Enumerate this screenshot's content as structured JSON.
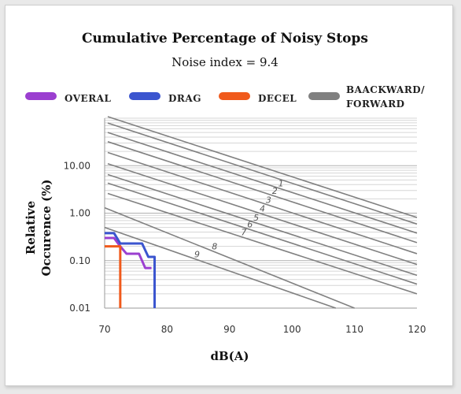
{
  "chart_data": {
    "type": "line",
    "title": "Cumulative Percentage of Noisy Stops",
    "subtitle": "Noise index = 9.4",
    "xlabel": "dB(A)",
    "ylabel": "Relative Occurence (%)",
    "xlim": [
      70,
      120
    ],
    "ylim": [
      0.01,
      100
    ],
    "yscale": "log",
    "x_ticks": [
      "70",
      "80",
      "90",
      "100",
      "110",
      "120"
    ],
    "x_tick_values": [
      70,
      80,
      90,
      100,
      110,
      120
    ],
    "y_ticks": [
      "0.01",
      "0.10",
      "1.00",
      "10.00"
    ],
    "y_tick_values": [
      0.01,
      0.1,
      1,
      10
    ],
    "grid": true,
    "legend_position": "top",
    "legend": [
      {
        "label": "OVERAL",
        "color": "#9b3fd0"
      },
      {
        "label": "DRAG",
        "color": "#3b55cf"
      },
      {
        "label": "DECEL",
        "color": "#f05a1c"
      },
      {
        "label": "BAACKWARD/",
        "label2": "FORWARD",
        "color": "#808080"
      }
    ],
    "series": [
      {
        "name": "OVERAL",
        "color": "#9b3fd0",
        "x": [
          70,
          71.5,
          72.5,
          73.5,
          74.5,
          75.5,
          76.5,
          77.5
        ],
        "y": [
          0.3,
          0.3,
          0.2,
          0.14,
          0.14,
          0.14,
          0.07,
          0.07
        ]
      },
      {
        "name": "DRAG",
        "color": "#3b55cf",
        "x": [
          70,
          71.5,
          72.5,
          76,
          77,
          78,
          78,
          78
        ],
        "y": [
          0.38,
          0.38,
          0.23,
          0.23,
          0.12,
          0.12,
          0.03,
          0.01
        ]
      },
      {
        "name": "DECEL",
        "color": "#f05a1c",
        "x": [
          70,
          71.8,
          72.5,
          72.5,
          72.5
        ],
        "y": [
          0.2,
          0.2,
          0.2,
          0.03,
          0.01
        ]
      }
    ],
    "reference_lines": {
      "color": "#808080",
      "slope_decades_per_dB": -0.06,
      "lines": [
        {
          "label": "",
          "x": [
            70.5,
            120
          ],
          "y": [
            108,
            0.81
          ]
        },
        {
          "label": "",
          "x": [
            70.5,
            120
          ],
          "y": [
            79,
            0.59
          ]
        },
        {
          "label": "1",
          "x": [
            70.5,
            120
          ],
          "y": [
            50,
            0.38
          ]
        },
        {
          "label": "2",
          "x": [
            70.5,
            120
          ],
          "y": [
            32,
            0.24
          ]
        },
        {
          "label": "3",
          "x": [
            70.5,
            120
          ],
          "y": [
            19,
            0.14
          ]
        },
        {
          "label": "4",
          "x": [
            70.5,
            120
          ],
          "y": [
            11,
            0.083
          ]
        },
        {
          "label": "5",
          "x": [
            70.5,
            120
          ],
          "y": [
            6.5,
            0.049
          ]
        },
        {
          "label": "6",
          "x": [
            70.5,
            120
          ],
          "y": [
            4.3,
            0.032
          ]
        },
        {
          "label": "7",
          "x": [
            70.5,
            120
          ],
          "y": [
            2.6,
            0.02
          ]
        },
        {
          "label": "8",
          "x": [
            70,
            110
          ],
          "y": [
            1.3,
            0.01
          ]
        },
        {
          "label": "9",
          "x": [
            70,
            107
          ],
          "y": [
            0.5,
            0.01
          ]
        }
      ]
    }
  }
}
